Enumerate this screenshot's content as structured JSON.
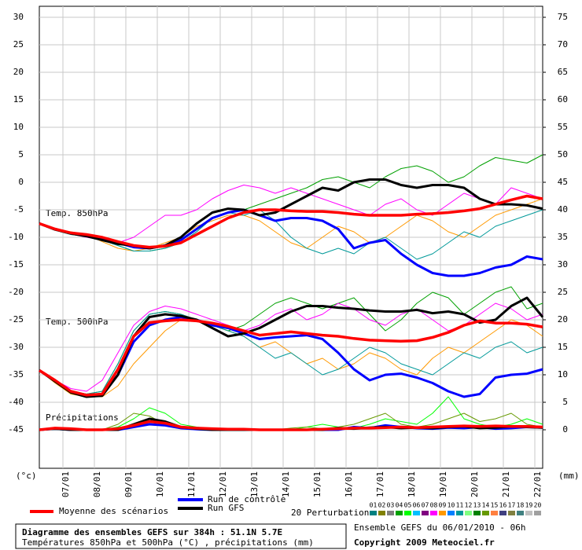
{
  "chart_data": {
    "type": "line",
    "title": "Diagramme des ensembles GEFS sur 384h : 51.1N 5.7E",
    "subtitle": "Températures 850hPa et 500hPa (°C) , précipitations (mm)",
    "run_info": "Ensemble GEFS du 06/01/2010 - 06h",
    "copyright": "Copyright 2009 Meteociel.fr",
    "y_axis_label": "(°c)",
    "y2_axis_label": "(mm)",
    "annotations": {
      "t850": "Temp. 850hPa",
      "t500": "Temp. 500hPa",
      "precip": "Précipitations"
    },
    "grid": true,
    "xlim": [
      6.25,
      22.25
    ],
    "xticks": [
      {
        "value": 7,
        "label": "07/01"
      },
      {
        "value": 8,
        "label": "08/01"
      },
      {
        "value": 9,
        "label": "09/01"
      },
      {
        "value": 10,
        "label": "10/01"
      },
      {
        "value": 11,
        "label": "11/01"
      },
      {
        "value": 12,
        "label": "12/01"
      },
      {
        "value": 13,
        "label": "13/01"
      },
      {
        "value": 14,
        "label": "14/01"
      },
      {
        "value": 15,
        "label": "15/01"
      },
      {
        "value": 16,
        "label": "16/01"
      },
      {
        "value": 17,
        "label": "17/01"
      },
      {
        "value": 18,
        "label": "18/01"
      },
      {
        "value": 19,
        "label": "19/01"
      },
      {
        "value": 20,
        "label": "20/01"
      },
      {
        "value": 21,
        "label": "21/01"
      },
      {
        "value": 22,
        "label": "22/01"
      }
    ],
    "ylim": [
      -52,
      32
    ],
    "yticks": [
      30,
      25,
      20,
      15,
      10,
      5,
      0,
      -5,
      -10,
      -15,
      -20,
      -25,
      -30,
      -35,
      -40,
      -45
    ],
    "y2lim": [
      -7,
      77
    ],
    "y2ticks": [
      75,
      70,
      65,
      60,
      55,
      50,
      45,
      40,
      35,
      30,
      25,
      20,
      15,
      10,
      5,
      0
    ],
    "x": [
      6.25,
      6.75,
      7.25,
      7.75,
      8.25,
      8.75,
      9.25,
      9.75,
      10.25,
      10.75,
      11.25,
      11.75,
      12.25,
      12.75,
      13.25,
      13.75,
      14.25,
      14.75,
      15.25,
      15.75,
      16.25,
      16.75,
      17.25,
      17.75,
      18.25,
      18.75,
      19.25,
      19.75,
      20.25,
      20.75,
      21.25,
      21.75,
      22.25
    ],
    "series": [
      {
        "name": "Moyenne des scénarios",
        "color": "#ff0000",
        "t850": [
          -7.5,
          -8.5,
          -9.2,
          -9.5,
          -10,
          -10.8,
          -11.5,
          -11.8,
          -11.6,
          -11,
          -9.5,
          -8,
          -6.5,
          -5.5,
          -5,
          -5,
          -5.2,
          -5.3,
          -5.3,
          -5.5,
          -5.8,
          -6,
          -6,
          -6,
          -5.8,
          -5.7,
          -5.5,
          -5.2,
          -4.8,
          -4,
          -3.2,
          -2.5,
          -3
        ],
        "t500": [
          -34.2,
          -36,
          -38,
          -38.7,
          -38.5,
          -34,
          -28,
          -25.5,
          -25.2,
          -25,
          -25.2,
          -25.6,
          -26.2,
          -27,
          -27.8,
          -27.5,
          -27.2,
          -27.5,
          -27.8,
          -28,
          -28.4,
          -28.7,
          -28.8,
          -28.9,
          -28.8,
          -28.2,
          -27.3,
          -26,
          -25.2,
          -25.6,
          -25.6,
          -25.8,
          -26.3
        ],
        "precip": [
          0,
          0.3,
          0.2,
          0,
          0,
          0.2,
          0.8,
          1.5,
          1.2,
          0.5,
          0.3,
          0.2,
          0.1,
          0.1,
          0,
          0,
          0,
          0,
          0.1,
          0.2,
          0.3,
          0.3,
          0.4,
          0.5,
          0.4,
          0.5,
          0.6,
          0.7,
          0.6,
          0.7,
          0.6,
          0.6,
          0.5
        ]
      },
      {
        "name": "Run de contrôle",
        "color": "#0000ff",
        "t850": [
          -7.5,
          -8.5,
          -9.3,
          -9.6,
          -10.2,
          -11,
          -11.8,
          -12,
          -11.5,
          -10.5,
          -8.5,
          -6.5,
          -5.5,
          -5,
          -6,
          -7,
          -6.5,
          -6.5,
          -7,
          -8.5,
          -12,
          -11,
          -10.5,
          -13,
          -15,
          -16.5,
          -17,
          -17,
          -16.5,
          -15.5,
          -15,
          -13.5,
          -14
        ],
        "t500": [
          -34.2,
          -36,
          -38,
          -38.7,
          -38.6,
          -35,
          -29,
          -26,
          -25,
          -24.5,
          -25,
          -26,
          -26.5,
          -27.5,
          -28.5,
          -28.2,
          -28,
          -27.8,
          -28.5,
          -31,
          -34,
          -36,
          -35,
          -34.8,
          -35.5,
          -36.5,
          -38,
          -39,
          -38.5,
          -35.5,
          -35,
          -34.8,
          -34
        ],
        "precip": [
          0,
          0.2,
          0,
          0,
          0,
          0,
          0.5,
          1,
          0.8,
          0.3,
          0.1,
          0,
          0,
          0,
          0,
          0,
          0,
          0,
          0,
          0,
          0.5,
          0.3,
          0.8,
          0.5,
          0.3,
          0.2,
          0.4,
          0.3,
          0.5,
          0.2,
          0.3,
          0.5,
          0.4
        ]
      },
      {
        "name": "Run GFS",
        "color": "#000000",
        "t850": [
          -7.5,
          -8.6,
          -9.3,
          -9.8,
          -10.5,
          -11.2,
          -11.5,
          -12,
          -11.5,
          -10,
          -7.5,
          -5.5,
          -4.8,
          -5,
          -6,
          -5.5,
          -4,
          -2.5,
          -1,
          -1.5,
          0,
          0.5,
          0.5,
          -0.5,
          -1,
          -0.5,
          -0.5,
          -1,
          -3,
          -4,
          -4,
          -4.2,
          -4.8
        ],
        "t500": [
          -34.2,
          -36.2,
          -38.2,
          -39,
          -38.8,
          -35,
          -28,
          -24.5,
          -24,
          -24.3,
          -25,
          -26.5,
          -28,
          -27.5,
          -26.5,
          -25,
          -23.5,
          -22.5,
          -22.5,
          -22.8,
          -23,
          -23.3,
          -23.5,
          -23.5,
          -23.2,
          -23.8,
          -23.5,
          -24,
          -25.5,
          -25,
          -22.5,
          -21,
          -24.5
        ],
        "precip": [
          0,
          0.2,
          0,
          0,
          0,
          0,
          1,
          2,
          1.5,
          0.5,
          0.2,
          0,
          0,
          0,
          0,
          0,
          0,
          0,
          0,
          0.3,
          0.2,
          0.4,
          0.5,
          0.3,
          0.4,
          0.3,
          0.5,
          0.6,
          0.3,
          0.4,
          0.6,
          0.5,
          0.4
        ]
      }
    ],
    "perturbations": {
      "label": "20 Perturbations",
      "members": [
        {
          "label": "01",
          "color": "#008080"
        },
        {
          "label": "02",
          "color": "#808000"
        },
        {
          "label": "03",
          "color": "#808080"
        },
        {
          "label": "04",
          "color": "#00a000",
          "t850": [
            -7.5,
            -8.7,
            -9.5,
            -9.8,
            -10.5,
            -11.5,
            -12.5,
            -12.5,
            -12,
            -11,
            -9,
            -6.5,
            -5.5,
            -5,
            -4,
            -3,
            -2,
            -1,
            0.5,
            1,
            0,
            -1,
            1,
            2.5,
            3,
            2,
            0,
            1,
            3,
            4.5,
            4,
            3.5,
            5
          ],
          "t500": [
            -34.2,
            -36,
            -38,
            -38.5,
            -38,
            -33,
            -27,
            -24,
            -23.5,
            -24,
            -25,
            -26,
            -27,
            -26,
            -24,
            -22,
            -21,
            -22,
            -23,
            -22,
            -21,
            -24,
            -27,
            -25,
            -22,
            -20,
            -21,
            -24,
            -22,
            -20,
            -19,
            -23,
            -22
          ]
        },
        {
          "label": "05",
          "color": "#00ff00",
          "precip": [
            0,
            0,
            0,
            0,
            0,
            0.5,
            2,
            4,
            3,
            1,
            0.5,
            0.2,
            0,
            0,
            0,
            0,
            0,
            0.5,
            1,
            0.5,
            0.3,
            1,
            2,
            1.5,
            1,
            3,
            6,
            2,
            1,
            0.5,
            1,
            2,
            1
          ]
        },
        {
          "label": "06",
          "color": "#00c0ff"
        },
        {
          "label": "07",
          "color": "#800080"
        },
        {
          "label": "08",
          "color": "#ff00ff",
          "t850": [
            -7.5,
            -8.6,
            -9.4,
            -10,
            -10.5,
            -11,
            -10,
            -8,
            -6,
            -6,
            -5,
            -3,
            -1.5,
            -0.5,
            -1,
            -2,
            -1,
            -2,
            -3,
            -4,
            -5,
            -6,
            -4,
            -3,
            -5,
            -6,
            -4,
            -2,
            -3,
            -4,
            -1,
            -2,
            -3
          ],
          "t500": [
            -34.2,
            -36,
            -37.5,
            -38,
            -36,
            -31,
            -26,
            -23.5,
            -22.5,
            -23,
            -24,
            -25,
            -26,
            -27,
            -26,
            -24,
            -23,
            -25,
            -24,
            -22,
            -23,
            -25,
            -26,
            -24,
            -23,
            -25,
            -27,
            -26,
            -24,
            -22,
            -23,
            -25,
            -24
          ]
        },
        {
          "label": "09",
          "color": "#ff9900",
          "t850": [
            -7.5,
            -8.5,
            -9,
            -9.5,
            -10.8,
            -12,
            -12.5,
            -12,
            -11,
            -10,
            -8,
            -7,
            -6,
            -6,
            -7,
            -9,
            -11,
            -12,
            -10,
            -8,
            -9,
            -11,
            -10,
            -8,
            -6,
            -7,
            -9,
            -10,
            -8,
            -6,
            -5,
            -4,
            -3
          ],
          "t500": [
            -34.2,
            -36.5,
            -38.5,
            -39,
            -39,
            -37,
            -33,
            -30,
            -27,
            -25,
            -25,
            -26,
            -27,
            -28,
            -30,
            -29,
            -31,
            -33,
            -32,
            -34,
            -33,
            -31,
            -32,
            -34,
            -35,
            -32,
            -30,
            -31,
            -29,
            -27,
            -25,
            -26,
            -28
          ]
        },
        {
          "label": "10",
          "color": "#0080ff"
        },
        {
          "label": "11",
          "color": "#009999",
          "t850": [
            -7.5,
            -8.7,
            -9.5,
            -9.8,
            -10.5,
            -11.5,
            -12.5,
            -12.5,
            -12,
            -11,
            -9,
            -6.5,
            -5.5,
            -6,
            -5,
            -7,
            -10,
            -12,
            -13,
            -12,
            -13,
            -11,
            -10,
            -12,
            -14,
            -13,
            -11,
            -9,
            -10,
            -8,
            -7,
            -6,
            -5
          ],
          "t500": [
            -34.2,
            -36,
            -38,
            -38.5,
            -38,
            -33,
            -27,
            -24,
            -23.5,
            -24,
            -25,
            -26,
            -27,
            -28,
            -30,
            -32,
            -31,
            -33,
            -35,
            -34,
            -32,
            -30,
            -31,
            -33,
            -34,
            -35,
            -33,
            -31,
            -32,
            -30,
            -29,
            -31,
            -30
          ]
        },
        {
          "label": "12",
          "color": "#80ff80"
        },
        {
          "label": "13",
          "color": "#008000"
        },
        {
          "label": "14",
          "color": "#669900",
          "precip": [
            0,
            0,
            0,
            0,
            0,
            1,
            3,
            2.5,
            1,
            0.3,
            0,
            0,
            0,
            0,
            0,
            0,
            0.3,
            0.5,
            0.2,
            0.5,
            1,
            2,
            3,
            1,
            0.5,
            1,
            2,
            3,
            1.5,
            2,
            3,
            1,
            0.5
          ]
        },
        {
          "label": "15",
          "color": "#ff8040"
        },
        {
          "label": "16",
          "color": "#404080"
        },
        {
          "label": "17",
          "color": "#808040"
        },
        {
          "label": "18",
          "color": "#408080"
        },
        {
          "label": "19",
          "color": "#c0c0c0"
        },
        {
          "label": "20",
          "color": "#a0a0a0"
        }
      ]
    }
  }
}
